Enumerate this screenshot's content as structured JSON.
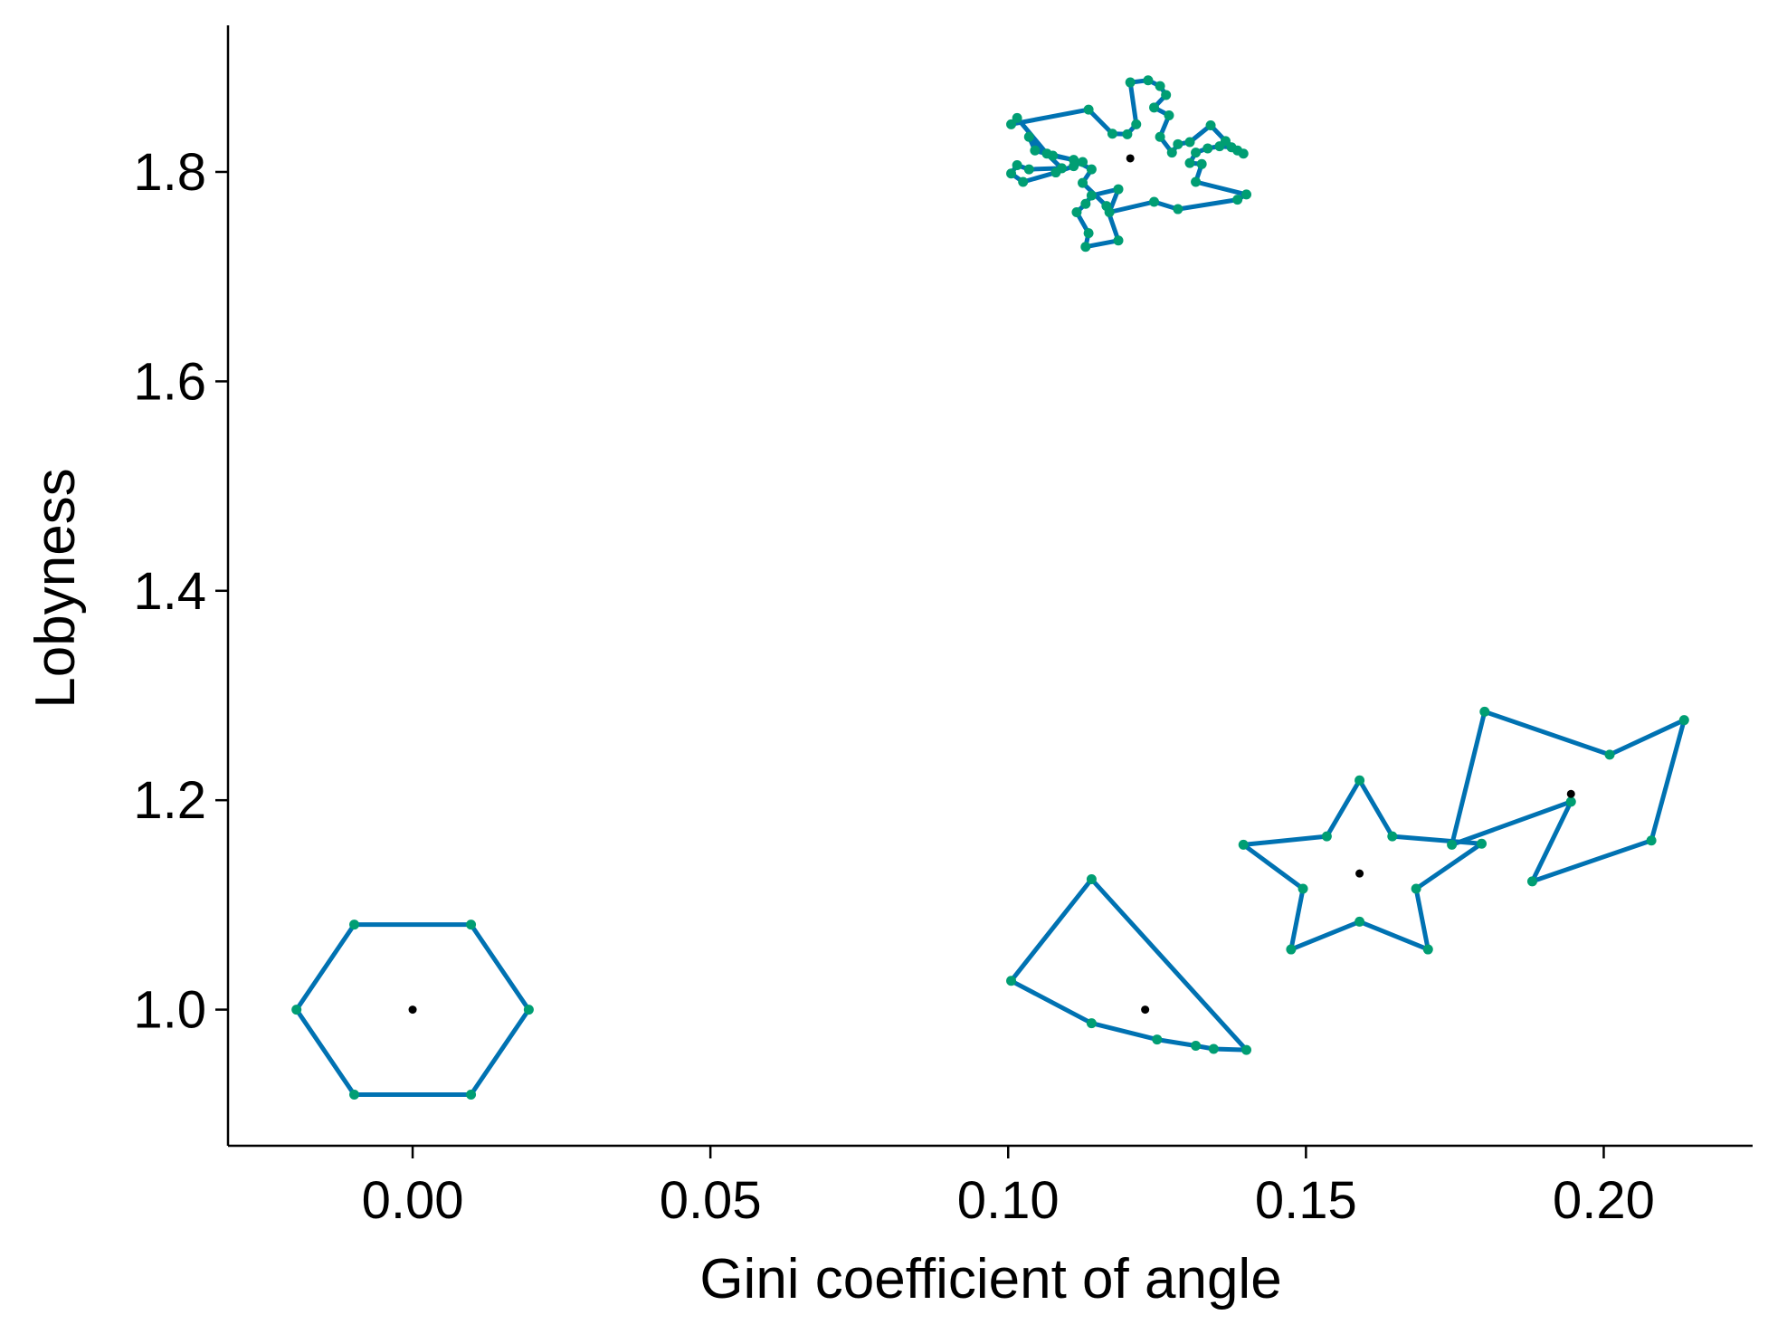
{
  "chart_data": {
    "type": "scatter",
    "xlabel": "Gini coefficient of angle",
    "ylabel": "Lobyness",
    "xlim": [
      -0.031,
      0.225
    ],
    "ylim": [
      0.87,
      1.94
    ],
    "xticks": [
      "0.00",
      "0.05",
      "0.10",
      "0.15",
      "0.20"
    ],
    "yticks": [
      "1.0",
      "1.2",
      "1.4",
      "1.6",
      "1.8"
    ],
    "grid": false,
    "colors": {
      "outline": "#0072b2",
      "vertex": "#009e73",
      "centroid": "#000000"
    },
    "shapes": [
      {
        "centroid": [
          0.0,
          1.0
        ],
        "vertices": [
          [
            0.0195,
            1.0
          ],
          [
            0.0098,
            1.0812
          ],
          [
            -0.0098,
            1.0812
          ],
          [
            -0.0195,
            1.0
          ],
          [
            -0.0098,
            0.9188
          ],
          [
            0.0098,
            0.9188
          ]
        ]
      },
      {
        "centroid": [
          0.123,
          1.0
        ],
        "vertices": [
          [
            0.114,
            1.1245
          ],
          [
            0.1005,
            1.0275
          ],
          [
            0.114,
            0.987
          ],
          [
            0.125,
            0.9715
          ],
          [
            0.1315,
            0.9655
          ],
          [
            0.1345,
            0.9625
          ],
          [
            0.14,
            0.9615
          ]
        ]
      },
      {
        "centroid": [
          0.159,
          1.13
        ],
        "vertices": [
          [
            0.159,
            1.219
          ],
          [
            0.1645,
            1.1655
          ],
          [
            0.1795,
            1.1585
          ],
          [
            0.1685,
            1.1155
          ],
          [
            0.1705,
            1.0575
          ],
          [
            0.159,
            1.084
          ],
          [
            0.1475,
            1.0575
          ],
          [
            0.1495,
            1.1155
          ],
          [
            0.1395,
            1.1575
          ],
          [
            0.1535,
            1.1655
          ]
        ]
      },
      {
        "centroid": [
          0.1945,
          1.206
        ],
        "vertices": [
          [
            0.18,
            1.2845
          ],
          [
            0.201,
            1.2435
          ],
          [
            0.2135,
            1.2765
          ],
          [
            0.208,
            1.1615
          ],
          [
            0.188,
            1.1225
          ],
          [
            0.1945,
            1.1985
          ],
          [
            0.1745,
            1.1575
          ]
        ]
      },
      {
        "centroid": [
          0.1205,
          1.813
        ],
        "vertices": [
          [
            0.1005,
            1.8455
          ],
          [
            0.1135,
            1.8595
          ],
          [
            0.1175,
            1.8365
          ],
          [
            0.12,
            1.836
          ],
          [
            0.1215,
            1.8455
          ],
          [
            0.1205,
            1.8855
          ],
          [
            0.1235,
            1.8875
          ],
          [
            0.1255,
            1.882
          ],
          [
            0.1265,
            1.8735
          ],
          [
            0.1245,
            1.8615
          ],
          [
            0.127,
            1.854
          ],
          [
            0.1255,
            1.8335
          ],
          [
            0.1275,
            1.8185
          ],
          [
            0.1285,
            1.8265
          ],
          [
            0.1305,
            1.8285
          ],
          [
            0.134,
            1.8445
          ],
          [
            0.1365,
            1.8295
          ],
          [
            0.1385,
            1.8205
          ],
          [
            0.1395,
            1.8175
          ],
          [
            0.1375,
            1.8235
          ],
          [
            0.1355,
            1.8245
          ],
          [
            0.1335,
            1.8225
          ],
          [
            0.1315,
            1.8185
          ],
          [
            0.1305,
            1.8085
          ],
          [
            0.1325,
            1.8075
          ],
          [
            0.1315,
            1.7905
          ],
          [
            0.14,
            1.7785
          ],
          [
            0.1385,
            1.7735
          ],
          [
            0.1285,
            1.7645
          ],
          [
            0.1245,
            1.7715
          ],
          [
            0.117,
            1.7615
          ],
          [
            0.1185,
            1.7835
          ],
          [
            0.114,
            1.7775
          ],
          [
            0.113,
            1.7695
          ],
          [
            0.1115,
            1.7615
          ],
          [
            0.1135,
            1.7415
          ],
          [
            0.113,
            1.7285
          ],
          [
            0.1185,
            1.7345
          ],
          [
            0.1165,
            1.7675
          ],
          [
            0.1125,
            1.7895
          ],
          [
            0.114,
            1.8025
          ],
          [
            0.111,
            1.8115
          ],
          [
            0.1075,
            1.8155
          ],
          [
            0.1045,
            1.8205
          ],
          [
            0.1035,
            1.8335
          ],
          [
            0.109,
            1.8035
          ],
          [
            0.1035,
            1.8025
          ],
          [
            0.1015,
            1.8065
          ],
          [
            0.1005,
            1.7985
          ],
          [
            0.1025,
            1.7905
          ],
          [
            0.108,
            1.7995
          ],
          [
            0.111,
            1.8055
          ],
          [
            0.1125,
            1.8095
          ],
          [
            0.1065,
            1.8175
          ],
          [
            0.1015,
            1.8515
          ]
        ]
      }
    ]
  }
}
